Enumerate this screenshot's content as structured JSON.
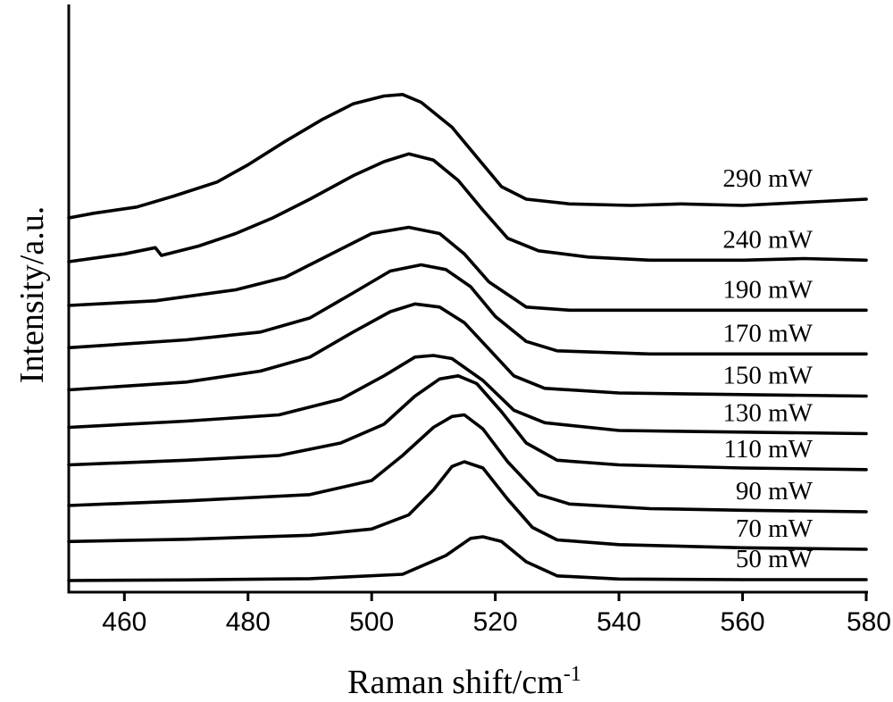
{
  "chart_data": {
    "type": "line",
    "title": "",
    "xlabel": "Raman shift/cm",
    "xlabel_sup": "-1",
    "ylabel": "Intensity/a.u.",
    "xlim": [
      451,
      580
    ],
    "xticks": [
      460,
      480,
      500,
      520,
      540,
      560,
      580
    ],
    "xtick_labels": [
      "460",
      "480",
      "500",
      "520",
      "540",
      "560",
      "580"
    ],
    "grid": false,
    "legend": "inline labels at right end of each curve",
    "y_offset_note": "curves vertically stacked with offsets; values are offset intensity in arbitrary units",
    "series": [
      {
        "name": "50 mW",
        "points": [
          [
            451,
            0.0
          ],
          [
            470,
            0.2
          ],
          [
            490,
            0.6
          ],
          [
            505,
            2.0
          ],
          [
            512,
            8.0
          ],
          [
            516,
            13.5
          ],
          [
            518,
            14.0
          ],
          [
            521,
            12.5
          ],
          [
            525,
            6.0
          ],
          [
            530,
            1.5
          ],
          [
            540,
            0.5
          ],
          [
            560,
            0.3
          ],
          [
            580,
            0.3
          ]
        ]
      },
      {
        "name": "70 mW",
        "points": [
          [
            451,
            12.5
          ],
          [
            470,
            13.2
          ],
          [
            490,
            14.5
          ],
          [
            500,
            16.5
          ],
          [
            506,
            21.0
          ],
          [
            510,
            29.0
          ],
          [
            513,
            36.5
          ],
          [
            515,
            38.0
          ],
          [
            518,
            36.0
          ],
          [
            522,
            26.0
          ],
          [
            526,
            17.0
          ],
          [
            530,
            13.0
          ],
          [
            540,
            11.5
          ],
          [
            560,
            10.5
          ],
          [
            580,
            10.0
          ]
        ]
      },
      {
        "name": "90 mW",
        "points": [
          [
            451,
            24.0
          ],
          [
            470,
            25.5
          ],
          [
            490,
            27.5
          ],
          [
            500,
            32.0
          ],
          [
            505,
            40.0
          ],
          [
            510,
            49.0
          ],
          [
            513,
            52.5
          ],
          [
            515,
            53.0
          ],
          [
            518,
            48.5
          ],
          [
            522,
            38.0
          ],
          [
            527,
            27.5
          ],
          [
            532,
            24.5
          ],
          [
            545,
            23.0
          ],
          [
            560,
            22.5
          ],
          [
            580,
            22.0
          ]
        ]
      },
      {
        "name": "110 mW",
        "points": [
          [
            451,
            37.0
          ],
          [
            470,
            38.5
          ],
          [
            485,
            40.0
          ],
          [
            495,
            44.0
          ],
          [
            502,
            50.0
          ],
          [
            507,
            59.0
          ],
          [
            511,
            64.5
          ],
          [
            514,
            65.5
          ],
          [
            517,
            63.0
          ],
          [
            521,
            54.0
          ],
          [
            525,
            44.0
          ],
          [
            530,
            38.5
          ],
          [
            540,
            37.0
          ],
          [
            560,
            36.0
          ],
          [
            580,
            35.5
          ]
        ]
      },
      {
        "name": "130 mW",
        "points": [
          [
            451,
            49.0
          ],
          [
            470,
            51.0
          ],
          [
            485,
            53.0
          ],
          [
            495,
            58.0
          ],
          [
            502,
            65.5
          ],
          [
            507,
            71.5
          ],
          [
            510,
            72.0
          ],
          [
            513,
            71.0
          ],
          [
            518,
            64.0
          ],
          [
            523,
            54.5
          ],
          [
            528,
            50.5
          ],
          [
            540,
            48.0
          ],
          [
            560,
            47.5
          ],
          [
            580,
            47.0
          ]
        ]
      },
      {
        "name": "150 mW",
        "points": [
          [
            451,
            61.0
          ],
          [
            470,
            63.5
          ],
          [
            482,
            67.0
          ],
          [
            490,
            71.5
          ],
          [
            497,
            79.5
          ],
          [
            503,
            86.0
          ],
          [
            507,
            88.5
          ],
          [
            511,
            87.5
          ],
          [
            515,
            82.5
          ],
          [
            519,
            74.0
          ],
          [
            523,
            65.5
          ],
          [
            528,
            61.5
          ],
          [
            540,
            60.0
          ],
          [
            560,
            59.5
          ],
          [
            580,
            59.0
          ]
        ]
      },
      {
        "name": "170 mW",
        "points": [
          [
            451,
            74.5
          ],
          [
            470,
            77.0
          ],
          [
            482,
            79.5
          ],
          [
            490,
            84.0
          ],
          [
            497,
            92.0
          ],
          [
            503,
            99.0
          ],
          [
            508,
            101.0
          ],
          [
            512,
            99.5
          ],
          [
            516,
            94.0
          ],
          [
            520,
            84.5
          ],
          [
            525,
            76.5
          ],
          [
            530,
            73.5
          ],
          [
            545,
            72.5
          ],
          [
            560,
            72.5
          ],
          [
            580,
            72.5
          ]
        ]
      },
      {
        "name": "190 mW",
        "points": [
          [
            451,
            88.0
          ],
          [
            465,
            89.5
          ],
          [
            478,
            93.0
          ],
          [
            486,
            97.0
          ],
          [
            493,
            104.0
          ],
          [
            500,
            111.0
          ],
          [
            506,
            113.0
          ],
          [
            511,
            111.0
          ],
          [
            515,
            104.5
          ],
          [
            519,
            95.5
          ],
          [
            525,
            87.5
          ],
          [
            532,
            86.5
          ],
          [
            545,
            86.5
          ],
          [
            560,
            86.5
          ],
          [
            580,
            86.5
          ]
        ]
      },
      {
        "name": "240 mW",
        "points": [
          [
            451,
            102.0
          ],
          [
            460,
            104.5
          ],
          [
            465,
            106.5
          ],
          [
            466,
            104.0
          ],
          [
            472,
            107.0
          ],
          [
            478,
            111.0
          ],
          [
            484,
            116.0
          ],
          [
            490,
            122.0
          ],
          [
            497,
            129.5
          ],
          [
            502,
            134.0
          ],
          [
            506,
            136.5
          ],
          [
            510,
            134.5
          ],
          [
            514,
            128.0
          ],
          [
            518,
            118.5
          ],
          [
            522,
            109.5
          ],
          [
            527,
            105.5
          ],
          [
            535,
            103.5
          ],
          [
            545,
            102.5
          ],
          [
            560,
            102.5
          ],
          [
            570,
            103.0
          ],
          [
            580,
            102.5
          ]
        ]
      },
      {
        "name": "290 mW",
        "points": [
          [
            451,
            116.0
          ],
          [
            455,
            117.5
          ],
          [
            462,
            119.5
          ],
          [
            468,
            123.0
          ],
          [
            475,
            127.5
          ],
          [
            480,
            133.0
          ],
          [
            486,
            140.5
          ],
          [
            492,
            147.5
          ],
          [
            497,
            152.5
          ],
          [
            502,
            155.0
          ],
          [
            505,
            155.5
          ],
          [
            508,
            153.0
          ],
          [
            513,
            145.0
          ],
          [
            517,
            135.5
          ],
          [
            521,
            126.0
          ],
          [
            525,
            122.0
          ],
          [
            532,
            120.5
          ],
          [
            542,
            120.0
          ],
          [
            550,
            120.5
          ],
          [
            560,
            120.0
          ],
          [
            570,
            121.0
          ],
          [
            580,
            122.0
          ]
        ]
      }
    ]
  }
}
